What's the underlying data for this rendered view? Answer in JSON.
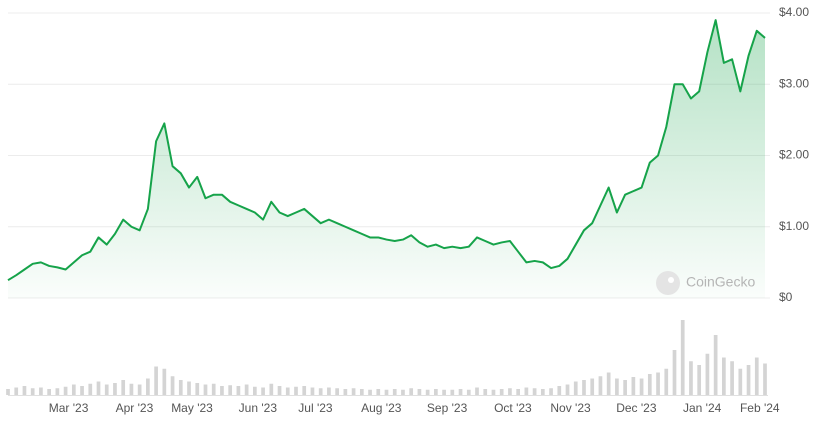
{
  "chart_data": {
    "type": "line",
    "watermark": "CoinGecko",
    "categories": [
      null,
      null,
      null,
      null,
      null,
      null,
      null,
      "Mar '23",
      null,
      null,
      null,
      null,
      null,
      null,
      null,
      "Apr '23",
      null,
      null,
      null,
      null,
      null,
      null,
      "May '23",
      null,
      null,
      null,
      null,
      null,
      null,
      null,
      "Jun '23",
      null,
      null,
      null,
      null,
      null,
      null,
      "Jul '23",
      null,
      null,
      null,
      null,
      null,
      null,
      null,
      "Aug '23",
      null,
      null,
      null,
      null,
      null,
      null,
      null,
      "Sep '23",
      null,
      null,
      null,
      null,
      null,
      null,
      null,
      "Oct '23",
      null,
      null,
      null,
      null,
      null,
      null,
      "Nov '23",
      null,
      null,
      null,
      null,
      null,
      null,
      null,
      "Dec '23",
      null,
      null,
      null,
      null,
      null,
      null,
      null,
      "Jan '24",
      null,
      null,
      null,
      null,
      null,
      null,
      "Feb '24",
      null
    ],
    "series": [
      {
        "color": "#16a34a",
        "values": [
          0.25,
          0.32,
          0.4,
          0.48,
          0.5,
          0.45,
          0.43,
          0.4,
          0.5,
          0.6,
          0.65,
          0.85,
          0.75,
          0.9,
          1.1,
          1.0,
          0.95,
          1.25,
          2.2,
          2.45,
          1.85,
          1.75,
          1.55,
          1.7,
          1.4,
          1.45,
          1.45,
          1.35,
          1.3,
          1.25,
          1.2,
          1.1,
          1.35,
          1.2,
          1.15,
          1.2,
          1.25,
          1.15,
          1.05,
          1.1,
          1.05,
          1.0,
          0.95,
          0.9,
          0.85,
          0.85,
          0.82,
          0.8,
          0.82,
          0.88,
          0.78,
          0.72,
          0.75,
          0.7,
          0.72,
          0.7,
          0.72,
          0.85,
          0.8,
          0.75,
          0.78,
          0.8,
          0.65,
          0.5,
          0.52,
          0.5,
          0.42,
          0.45,
          0.55,
          0.75,
          0.95,
          1.05,
          1.3,
          1.55,
          1.2,
          1.45,
          1.5,
          1.55,
          1.9,
          2.0,
          2.4,
          3.0,
          3.0,
          2.8,
          2.9,
          3.45,
          3.9,
          3.3,
          3.35,
          2.9,
          3.4,
          3.75,
          3.65
        ]
      },
      {
        "axis": "y2",
        "color": "#d4d4d4",
        "values": [
          8,
          10,
          12,
          9,
          10,
          8,
          9,
          11,
          14,
          12,
          15,
          18,
          14,
          16,
          20,
          15,
          14,
          22,
          38,
          35,
          25,
          20,
          18,
          16,
          14,
          15,
          12,
          13,
          12,
          14,
          11,
          10,
          15,
          12,
          10,
          11,
          12,
          10,
          9,
          10,
          9,
          8,
          9,
          8,
          7,
          8,
          7,
          8,
          7,
          9,
          8,
          7,
          8,
          7,
          7,
          8,
          7,
          10,
          8,
          7,
          8,
          9,
          8,
          10,
          9,
          8,
          9,
          12,
          14,
          18,
          20,
          22,
          25,
          30,
          22,
          20,
          24,
          22,
          28,
          30,
          35,
          60,
          100,
          45,
          40,
          55,
          80,
          50,
          45,
          35,
          40,
          50,
          42
        ]
      }
    ],
    "ylim": [
      0,
      4
    ],
    "yticks": [
      {
        "value": 0,
        "label": "$0"
      },
      {
        "value": 1,
        "label": "$1.00"
      },
      {
        "value": 2,
        "label": "$2.00"
      },
      {
        "value": 3,
        "label": "$3.00"
      },
      {
        "value": 4,
        "label": "$4.00"
      }
    ],
    "y2lim": [
      0,
      100
    ],
    "grid": true
  }
}
